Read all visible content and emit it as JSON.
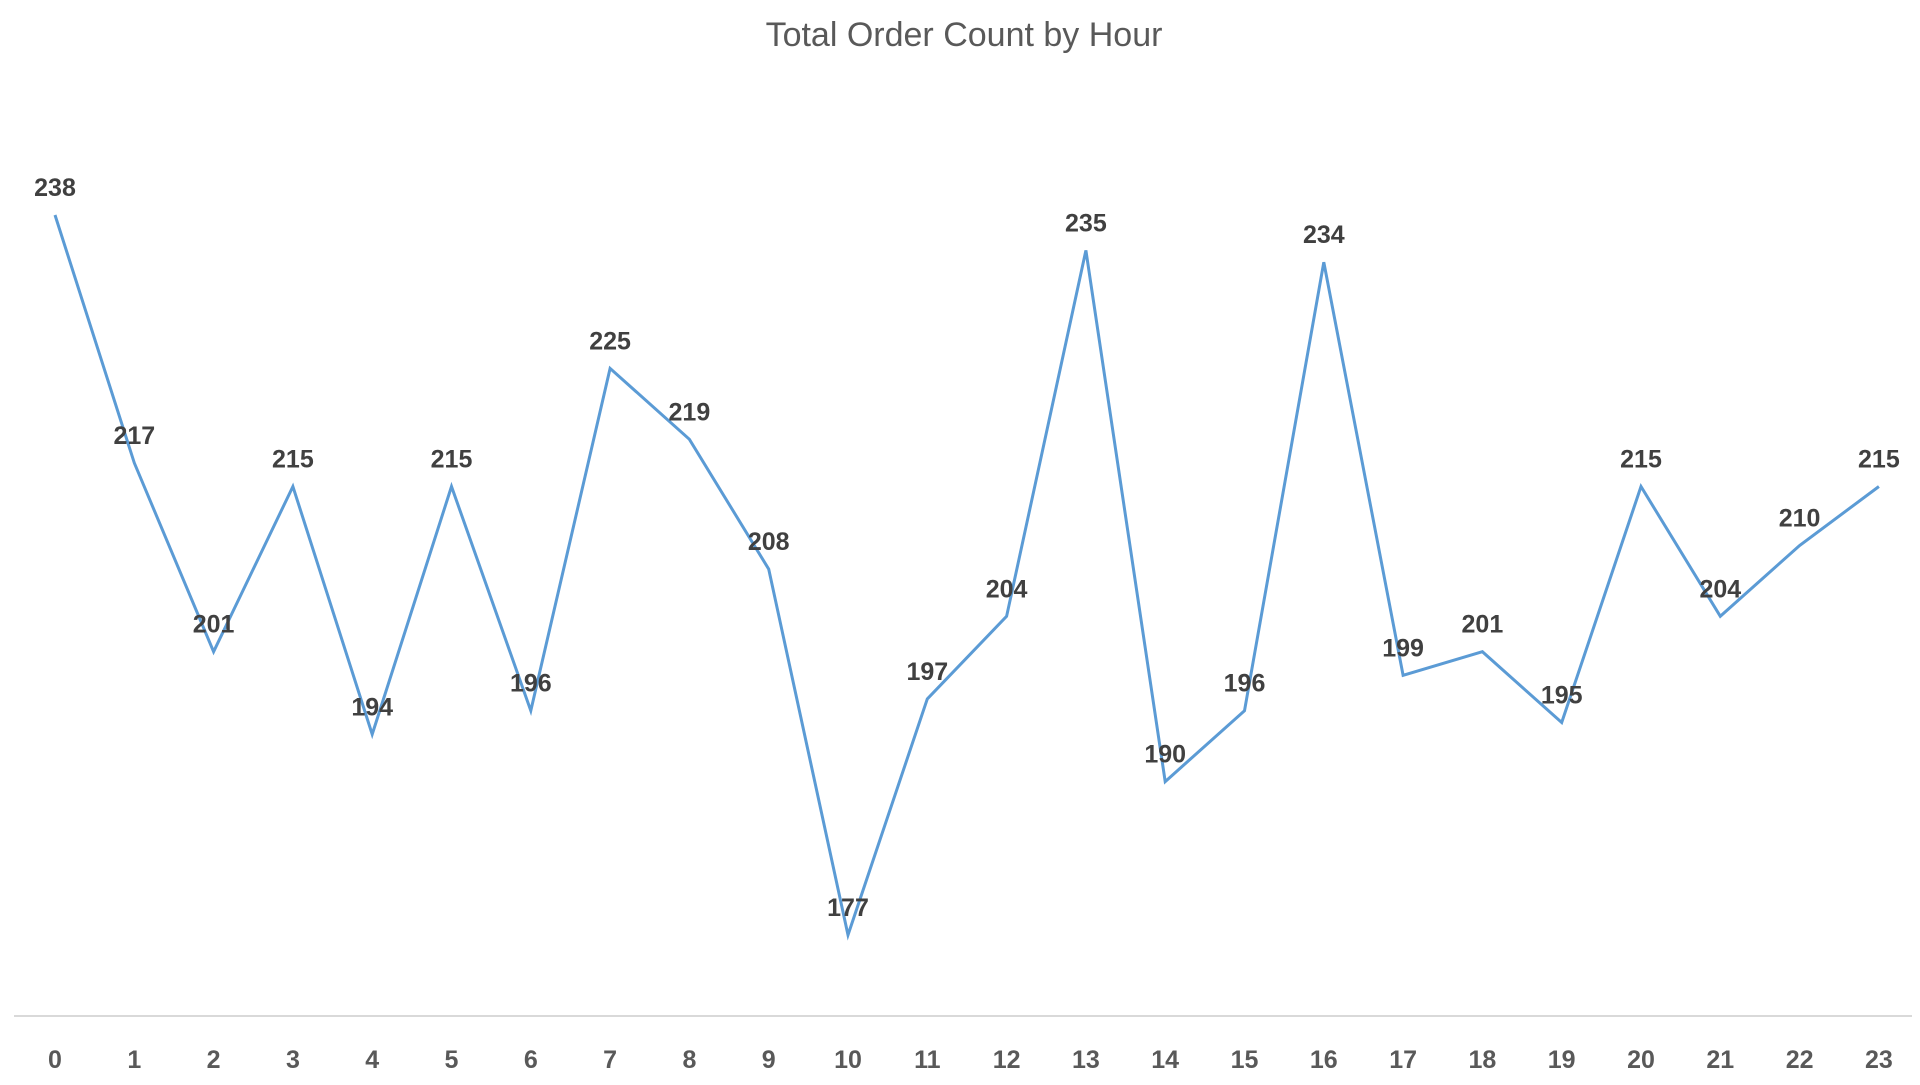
{
  "chart_data": {
    "type": "line",
    "title": "Total Order Count by Hour",
    "xlabel": "",
    "ylabel": "",
    "categories": [
      "0",
      "1",
      "2",
      "3",
      "4",
      "5",
      "6",
      "7",
      "8",
      "9",
      "10",
      "11",
      "12",
      "13",
      "14",
      "15",
      "16",
      "17",
      "18",
      "19",
      "20",
      "21",
      "22",
      "23"
    ],
    "series": [
      {
        "values": [
          238,
          217,
          201,
          215,
          194,
          215,
          196,
          225,
          219,
          208,
          177,
          197,
          204,
          235,
          190,
          196,
          234,
          199,
          201,
          195,
          215,
          204,
          210,
          215
        ]
      }
    ],
    "data_labels": [
      "238",
      "217",
      "201",
      "215",
      "194",
      "215",
      "196",
      "225",
      "219",
      "208",
      "177",
      "197",
      "204",
      "235",
      "190",
      "196",
      "234",
      "199",
      "201",
      "195",
      "215",
      "204",
      "210",
      "215"
    ],
    "ylim": [
      170,
      240
    ],
    "grid": false,
    "legend": "none",
    "line_color": "#5b9bd5",
    "axis_color": "#d9d9d9"
  }
}
